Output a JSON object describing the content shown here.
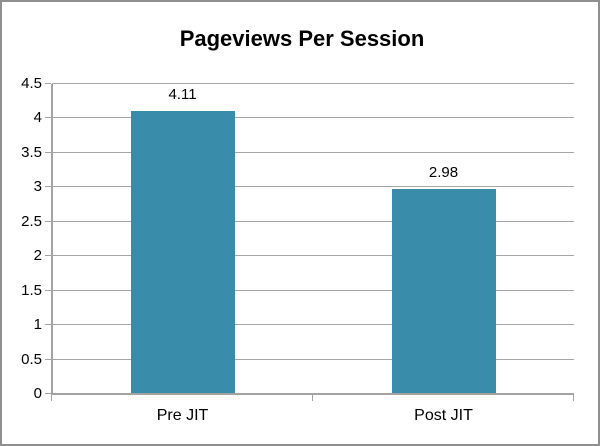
{
  "chart_data": {
    "type": "bar",
    "title": "Pageviews Per Session",
    "categories": [
      "Pre JIT",
      "Post JIT"
    ],
    "values": [
      4.11,
      2.98
    ],
    "value_labels": [
      "4.11",
      "2.98"
    ],
    "xlabel": "",
    "ylabel": "",
    "ylim": [
      0,
      4.5
    ],
    "ytick_step": 0.5,
    "ytick_labels": [
      "0",
      "0.5",
      "1",
      "1.5",
      "2",
      "2.5",
      "3",
      "3.5",
      "4",
      "4.5"
    ],
    "grid": true,
    "legend_position": "none",
    "bar_color": "#3A8CAB",
    "gridline_color": "#A6A6A6",
    "axis_color": "#A3A3A3",
    "text_color": "#000000",
    "background_color": "#FFFFFF",
    "border_color": "#8F8F8F"
  }
}
